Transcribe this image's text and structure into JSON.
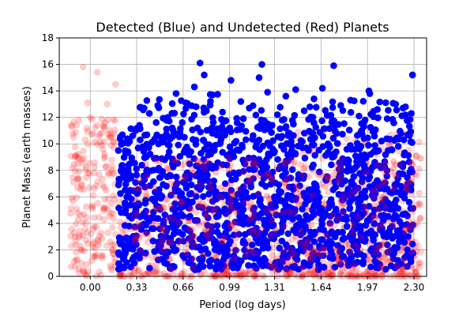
{
  "chart_data": {
    "type": "scatter",
    "title": "Detected (Blue) and Undetected (Red) Planets",
    "xlabel": "Period (log days)",
    "ylabel": "Planet Mass (earth masses)",
    "xlim": [
      -0.22,
      2.39
    ],
    "ylim": [
      0,
      18
    ],
    "xtick_labels": [
      "0.00",
      "0.33",
      "0.66",
      "0.99",
      "1.31",
      "1.64",
      "1.97",
      "2.30"
    ],
    "xtick_values": [
      0.0,
      0.33,
      0.66,
      0.99,
      1.31,
      1.64,
      1.97,
      2.3
    ],
    "ytick_values": [
      0,
      2,
      4,
      6,
      8,
      10,
      12,
      14,
      16,
      18
    ],
    "grid": true,
    "series": [
      {
        "color": "#0000ff",
        "marker_opacity": 1.0,
        "x": [
          0.2,
          0.28,
          0.35,
          0.42,
          0.48,
          0.55,
          0.61,
          0.68,
          0.74,
          0.81,
          0.87,
          0.94,
          1.0,
          1.07,
          1.13,
          1.2,
          1.26,
          1.33,
          1.39,
          1.46,
          1.52,
          1.59,
          1.65,
          1.72,
          1.78,
          1.85,
          1.91,
          1.98,
          2.04,
          2.11,
          2.17,
          2.24,
          2.29,
          0.78,
          1.22,
          1.73,
          2.29
        ],
        "y": [
          9.5,
          10.2,
          11.4,
          12.3,
          12.9,
          12.0,
          13.8,
          13.1,
          14.3,
          15.2,
          13.7,
          12.4,
          14.8,
          13.2,
          12.7,
          15.0,
          13.9,
          12.2,
          13.6,
          14.1,
          12.5,
          13.4,
          14.2,
          11.8,
          12.9,
          13.3,
          12.1,
          14.0,
          12.6,
          11.9,
          13.0,
          12.8,
          15.2,
          16.1,
          16.0,
          15.9,
          15.2
        ]
      },
      {
        "color": "#ff0000",
        "marker_opacity": 0.2,
        "x": [
          -0.12,
          -0.08,
          -0.05,
          -0.02,
          0.0,
          0.02,
          0.05,
          0.08,
          0.1,
          0.12,
          0.15,
          0.18
        ],
        "y": [
          10.5,
          11.8,
          15.8,
          13.1,
          12.0,
          10.8,
          15.4,
          9.9,
          11.2,
          13.0,
          10.6,
          14.5
        ]
      }
    ]
  }
}
